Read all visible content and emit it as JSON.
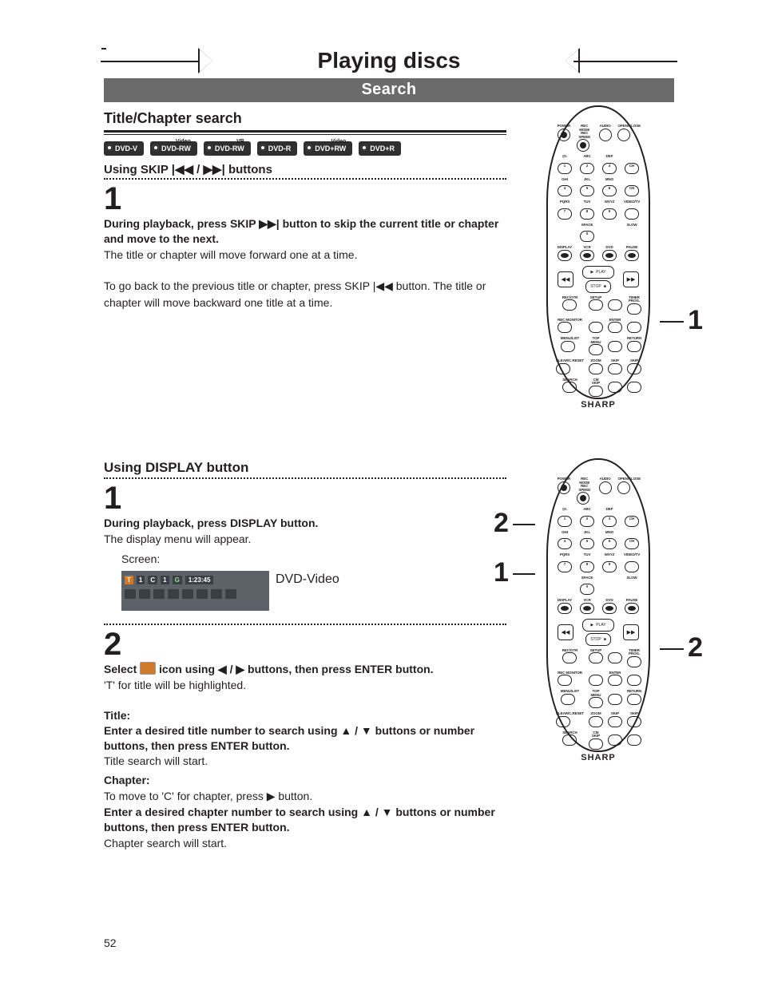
{
  "header": {
    "page_title": "Playing discs",
    "section_bar": "Search"
  },
  "section1": {
    "heading": "Title/Chapter search",
    "disc_badges": [
      {
        "label": "DVD-V",
        "color": "#2f2f2f",
        "sup": ""
      },
      {
        "label": "DVD-RW",
        "color": "#2f2f2f",
        "sup": "Video"
      },
      {
        "label": "DVD-RW",
        "color": "#2f2f2f",
        "sup": "VR"
      },
      {
        "label": "DVD-R",
        "color": "#2f2f2f",
        "sup": ""
      },
      {
        "label": "DVD+RW",
        "color": "#2f2f2f",
        "sup": "Video"
      },
      {
        "label": "DVD+R",
        "color": "#2f2f2f",
        "sup": ""
      }
    ],
    "sub_heading": "Using SKIP |◀◀ / ▶▶| buttons",
    "step1": {
      "num": "1",
      "bold": "During playback, press SKIP ▶▶| button to skip the current title or chapter and move to the next.",
      "plain": "The title or chapter will move forward one at a time.",
      "para2": "To go back to the previous title or chapter, press SKIP |◀◀ button. The title or chapter will move backward one title at a time."
    }
  },
  "section2": {
    "heading": "Using DISPLAY button",
    "step1": {
      "num": "1",
      "bold": "During playback, press DISPLAY button.",
      "plain": "The display menu will appear.",
      "screen_label": "Screen:",
      "osd": {
        "row1": {
          "t": "T",
          "tnum": "1",
          "c": "C",
          "cnum": "1",
          "g": "G",
          "time": "1:23:45"
        },
        "badge": "DVD-Video"
      }
    },
    "step2": {
      "num": "2",
      "bold_a": "Select ",
      "bold_b": " icon using ◀ / ▶ buttons, then press ENTER button.",
      "icon_bg": "#d07a2e",
      "plain": "'T' for title will be highlighted.",
      "title_label": "Title:",
      "title_bold": "Enter a desired title number to search using ▲ / ▼ buttons or number buttons, then press ENTER button.",
      "title_plain": "Title search will start.",
      "chapter_label": "Chapter:",
      "chapter_plain": "To move to 'C' for chapter, press ▶ button.",
      "chapter_bold": "Enter a desired chapter number to search using ▲ / ▼ buttons or number buttons, then press ENTER button.",
      "chapter_plain2": "Chapter search will start."
    }
  },
  "remote": {
    "brand": "SHARP",
    "top_labels": [
      "POWER",
      "REC MODE REC SPEED",
      "AUDIO",
      "OPEN/CLOSE"
    ],
    "row_labels": [
      [
        "@!.",
        "ABC",
        "DEF",
        ""
      ],
      [
        "1",
        "2",
        "3",
        "CH"
      ],
      [
        "GHI",
        "JKL",
        "MNO",
        ""
      ],
      [
        "4",
        "5",
        "6",
        "CH"
      ],
      [
        "PQRS",
        "TUV",
        "WXYZ",
        "VIDEO/TV"
      ],
      [
        "7",
        "8",
        "9",
        ""
      ],
      [
        "",
        "SPACE",
        "",
        "SLOW"
      ],
      [
        "",
        "0",
        "",
        ""
      ],
      [
        "DISPLAY",
        "VCR",
        "DVD",
        "PAUSE"
      ]
    ],
    "play": "PLAY",
    "stop": "STOP",
    "lower_labels": [
      [
        "REC/OTR",
        "SETUP",
        "",
        "TIMER PROG."
      ],
      [
        "REC MONITOR",
        "",
        "ENTER",
        ""
      ],
      [
        "MENU/LIST",
        "TOP MENU",
        "",
        "RETURN"
      ],
      [
        "CLEAR/C.RESET",
        "ZOOM",
        "SKIP",
        "SKIP"
      ],
      [
        "SEARCH",
        "CM SKIP",
        "",
        ""
      ]
    ]
  },
  "callouts": {
    "remote1_right": "1",
    "remote2_left_top": "2",
    "remote2_left_bottom": "1",
    "remote2_right": "2"
  },
  "page_number": "52"
}
